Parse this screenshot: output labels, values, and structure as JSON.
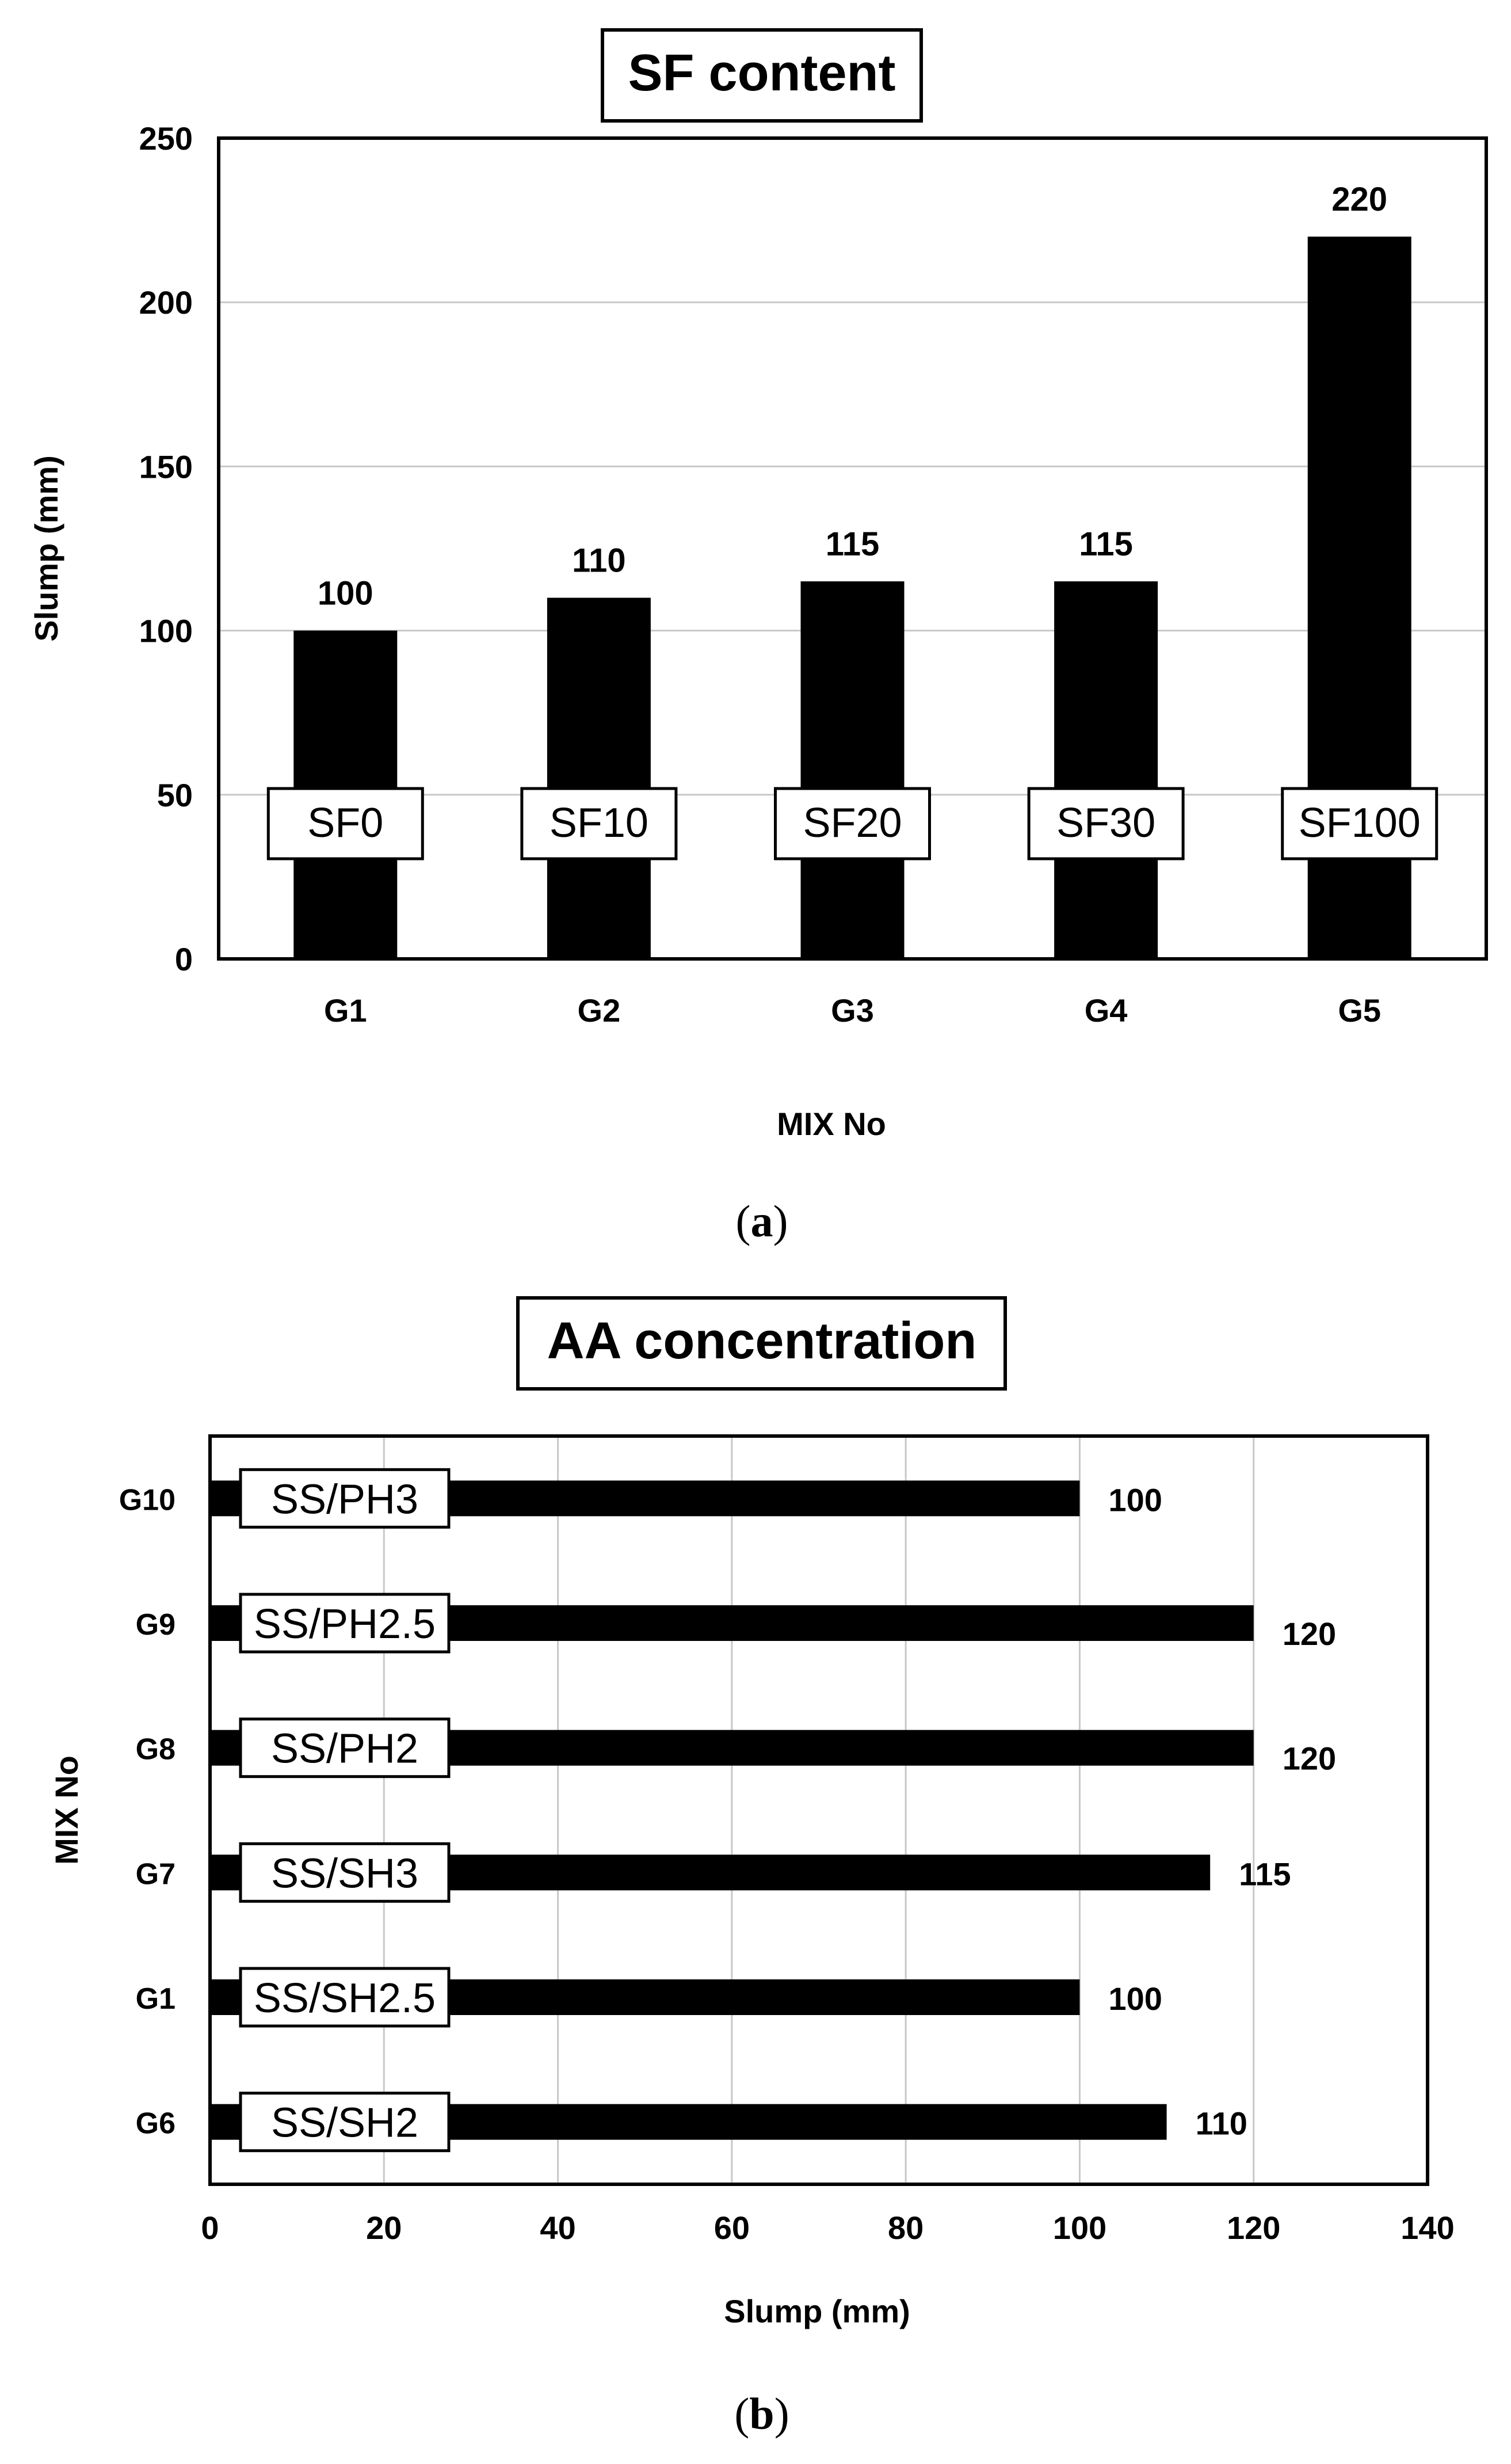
{
  "colors": {
    "bar": "#000000",
    "grid": "#c8c8c8",
    "frame": "#000000",
    "label_fill": "#ffffff",
    "text": "#000000"
  },
  "chart_data": [
    {
      "type": "bar",
      "orientation": "vertical",
      "panel_label_open": "(",
      "panel_label_letter": "a",
      "panel_label_close": ")",
      "title": "SF content",
      "xlabel": "MIX No",
      "ylabel": "Slump (mm)",
      "ylim": [
        0,
        250
      ],
      "yticks": [
        "0",
        "50",
        "100",
        "150",
        "200",
        "250"
      ],
      "grid": true,
      "categories": [
        "G1",
        "G2",
        "G3",
        "G4",
        "G5"
      ],
      "values": [
        100,
        110,
        115,
        115,
        220
      ],
      "value_labels": [
        "100",
        "110",
        "115",
        "115",
        "220"
      ],
      "bar_annotations": [
        "SF0",
        "SF10",
        "SF20",
        "SF30",
        "SF100"
      ]
    },
    {
      "type": "bar",
      "orientation": "horizontal",
      "panel_label_open": "(",
      "panel_label_letter": "b",
      "panel_label_close": ")",
      "title": "AA concentration",
      "xlabel": "Slump (mm)",
      "ylabel": "MIX No",
      "xlim": [
        0,
        140
      ],
      "xticks": [
        "0",
        "20",
        "40",
        "60",
        "80",
        "100",
        "120",
        "140"
      ],
      "grid": true,
      "categories": [
        "G10",
        "G9",
        "G8",
        "G7",
        "G1",
        "G6"
      ],
      "values": [
        100,
        120,
        120,
        115,
        100,
        110
      ],
      "value_labels": [
        "100",
        "120",
        "120",
        "115",
        "100",
        "110"
      ],
      "bar_annotations": [
        "SS/PH3",
        "SS/PH2.5",
        "SS/PH2",
        "SS/SH3",
        "SS/SH2.5",
        "SS/SH2"
      ]
    }
  ]
}
